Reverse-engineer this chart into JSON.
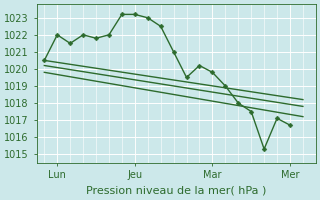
{
  "background_color": "#cce8ea",
  "grid_color": "#ffffff",
  "line_color": "#2d6b2d",
  "tick_label_color": "#2d6b2d",
  "xlabel": "Pression niveau de la mer( hPa )",
  "ylim": [
    1014.5,
    1023.8
  ],
  "yticks": [
    1015,
    1016,
    1017,
    1018,
    1019,
    1020,
    1021,
    1022,
    1023
  ],
  "xlim": [
    -0.3,
    10.5
  ],
  "xtick_labels": [
    "Lun",
    "Jeu",
    "Mar",
    "Mer"
  ],
  "xtick_positions": [
    0.5,
    3.5,
    6.5,
    9.5
  ],
  "vline_positions": [
    0.5,
    3.5,
    6.5,
    9.5
  ],
  "series": [
    {
      "x": [
        0.0,
        0.5,
        1.0,
        1.5,
        2.0,
        2.5,
        3.0,
        3.5,
        4.0,
        4.5,
        5.0,
        5.5,
        6.0,
        6.5,
        7.0,
        7.5,
        8.0,
        8.5,
        9.0,
        9.5
      ],
      "y": [
        1020.5,
        1022.0,
        1021.5,
        1022.0,
        1021.8,
        1022.0,
        1023.2,
        1023.2,
        1023.0,
        1022.5,
        1021.0,
        1019.5,
        1020.2,
        1019.8,
        1019.0,
        1018.0,
        1017.5,
        1015.3,
        1017.1,
        1016.7
      ]
    },
    {
      "x": [
        0.0,
        10.0
      ],
      "y": [
        1020.5,
        1018.2
      ]
    },
    {
      "x": [
        0.0,
        10.0
      ],
      "y": [
        1020.2,
        1017.8
      ]
    },
    {
      "x": [
        0.0,
        10.0
      ],
      "y": [
        1019.8,
        1017.2
      ]
    }
  ],
  "marker_series": 0,
  "marker": "D",
  "marker_size": 2.5,
  "line_width": 1.0,
  "xlabel_fontsize": 8,
  "tick_fontsize": 7
}
